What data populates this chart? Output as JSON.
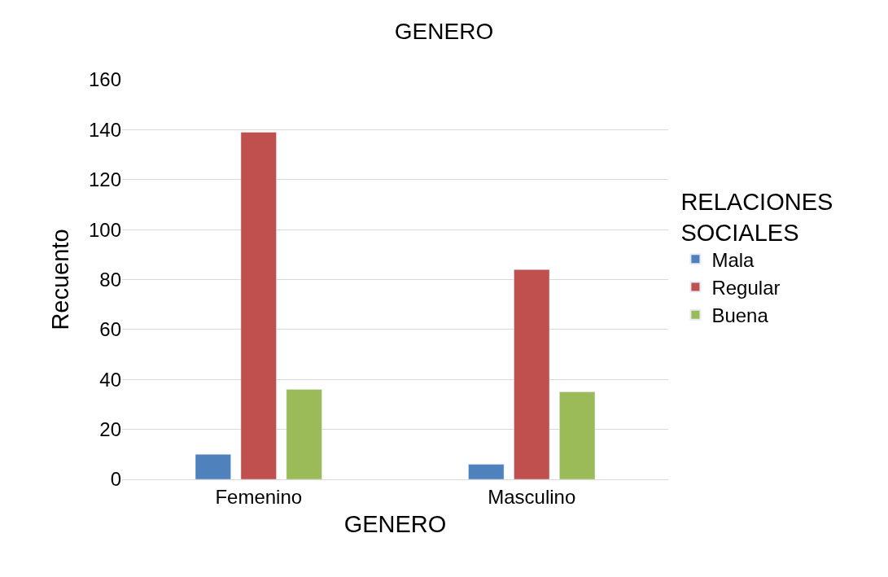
{
  "chart_data": {
    "type": "bar",
    "title": "GENERO",
    "xlabel": "GENERO",
    "ylabel": "Recuento",
    "legend_title": "RELACIONES SOCIALES",
    "categories": [
      "Femenino",
      "Masculino"
    ],
    "series": [
      {
        "name": "Mala",
        "color": "#4f81bd",
        "values": [
          10,
          6
        ]
      },
      {
        "name": "Regular",
        "color": "#c0504d",
        "values": [
          139,
          84
        ]
      },
      {
        "name": "Buena",
        "color": "#9bbb59",
        "values": [
          36,
          35
        ]
      }
    ],
    "ylim": [
      0,
      160
    ],
    "yticks": [
      0,
      20,
      40,
      60,
      80,
      100,
      120,
      140,
      160
    ],
    "grid": "y",
    "legend": "right"
  }
}
